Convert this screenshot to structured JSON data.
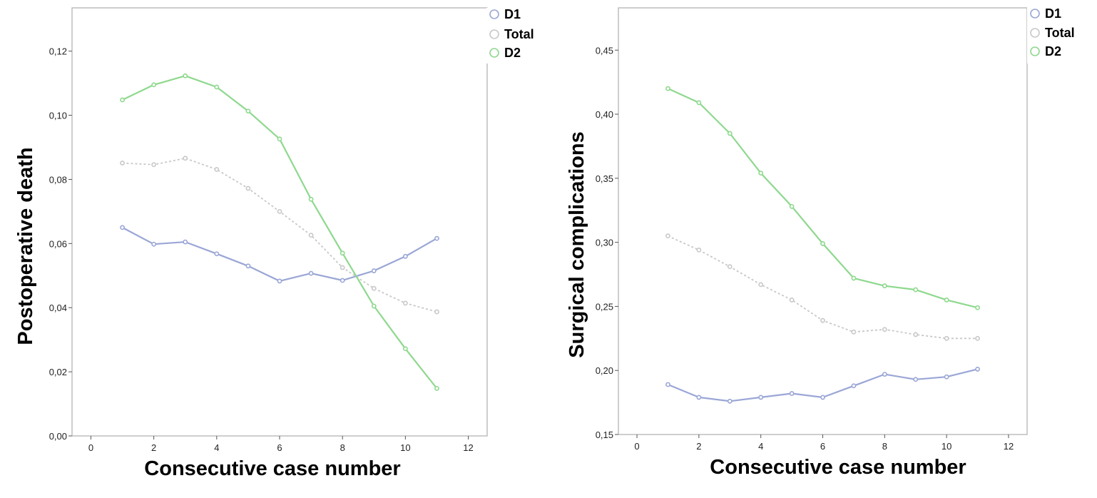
{
  "chart_data": [
    {
      "type": "line",
      "xlabel": "Consecutive case number",
      "ylabel": "Postoperative death",
      "xlim": [
        -0.6,
        12.6
      ],
      "ylim": [
        0,
        0.1335
      ],
      "xticks": [
        0,
        2,
        4,
        6,
        8,
        10,
        12
      ],
      "xtick_labels": [
        "0",
        "2",
        "4",
        "6",
        "8",
        "10",
        "12"
      ],
      "yticks": [
        0,
        0.02,
        0.04,
        0.06,
        0.08,
        0.1,
        0.12
      ],
      "ytick_labels": [
        "0,00",
        "0,02",
        "0,04",
        "0,06",
        "0,08",
        "0,10",
        "0,12"
      ],
      "grid": false,
      "legend_position": "top-right-outside",
      "x": [
        1,
        2,
        3,
        4,
        5,
        6,
        7,
        8,
        9,
        10,
        11
      ],
      "series": [
        {
          "name": "D1",
          "color": "#9aa6d6",
          "style": "solid",
          "values": [
            0.065,
            0.0598,
            0.0605,
            0.0568,
            0.053,
            0.0483,
            0.0507,
            0.0485,
            0.0515,
            0.056,
            0.0616
          ]
        },
        {
          "name": "Total",
          "color": "#c8c8c8",
          "style": "dotted",
          "values": [
            0.0851,
            0.0846,
            0.0866,
            0.0831,
            0.0772,
            0.07,
            0.0626,
            0.0525,
            0.046,
            0.0414,
            0.0387
          ]
        },
        {
          "name": "D2",
          "color": "#8ed88e",
          "style": "solid",
          "values": [
            0.1048,
            0.1095,
            0.1123,
            0.1088,
            0.1013,
            0.0926,
            0.0738,
            0.057,
            0.0405,
            0.0272,
            0.0148
          ]
        }
      ]
    },
    {
      "type": "line",
      "xlabel": "Consecutive case number",
      "ylabel": "Surgical complications",
      "xlim": [
        -0.6,
        12.6
      ],
      "ylim": [
        0.15,
        0.483
      ],
      "xticks": [
        0,
        2,
        4,
        6,
        8,
        10,
        12
      ],
      "xtick_labels": [
        "0",
        "2",
        "4",
        "6",
        "8",
        "10",
        "12"
      ],
      "yticks": [
        0.15,
        0.2,
        0.25,
        0.3,
        0.35,
        0.4,
        0.45
      ],
      "ytick_labels": [
        "0,15",
        "0,20",
        "0,25",
        "0,30",
        "0,35",
        "0,40",
        "0,45"
      ],
      "grid": false,
      "legend_position": "top-right-outside",
      "x": [
        1,
        2,
        3,
        4,
        5,
        6,
        7,
        8,
        9,
        10,
        11
      ],
      "series": [
        {
          "name": "D1",
          "color": "#9aa6d6",
          "style": "solid",
          "values": [
            0.189,
            0.179,
            0.176,
            0.179,
            0.182,
            0.179,
            0.188,
            0.197,
            0.193,
            0.195,
            0.201
          ]
        },
        {
          "name": "Total",
          "color": "#c8c8c8",
          "style": "dotted",
          "values": [
            0.305,
            0.294,
            0.281,
            0.267,
            0.255,
            0.239,
            0.23,
            0.232,
            0.228,
            0.225,
            0.225
          ]
        },
        {
          "name": "D2",
          "color": "#8ed88e",
          "style": "solid",
          "values": [
            0.42,
            0.409,
            0.385,
            0.354,
            0.328,
            0.299,
            0.272,
            0.266,
            0.263,
            0.255,
            0.249
          ]
        }
      ]
    }
  ]
}
